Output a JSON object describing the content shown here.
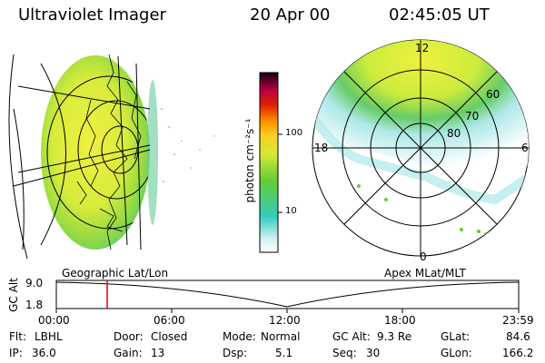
{
  "header": {
    "title": "Ultraviolet Imager",
    "date": "20 Apr 00",
    "time": "02:45:05 UT"
  },
  "colorbar": {
    "label": "photon cm⁻²s⁻¹",
    "ticks": [
      "100",
      "10"
    ]
  },
  "geo_panel": {
    "label": "Geographic Lat/Lon"
  },
  "polar_panel": {
    "label": "Apex MLat/MLT",
    "mlt_labels": {
      "top": "12",
      "left": "18",
      "right": "6",
      "bottom": "0"
    },
    "lat_labels": [
      "60",
      "70",
      "80"
    ]
  },
  "altitude_plot": {
    "ylabel": "GC Alt",
    "yticks": [
      "9.0",
      "1.8"
    ],
    "xticks": [
      "00:00",
      "06:00",
      "12:00",
      "18:00",
      "23:59"
    ],
    "marker_color": "#e00000",
    "marker_time": "02:45"
  },
  "footer": {
    "row1": [
      {
        "key": "Flt:",
        "value": "LBHL"
      },
      {
        "key": "Door:",
        "value": "Closed"
      },
      {
        "key": "Mode:",
        "value": "Normal"
      },
      {
        "key": "GC Alt:",
        "value": "9.3 Re"
      },
      {
        "key": "GLat:",
        "value": "84.6"
      }
    ],
    "row2": [
      {
        "key": "IP:",
        "value": "36.0"
      },
      {
        "key": "Gain:",
        "value": "13"
      },
      {
        "key": "Dsp:",
        "value": "5.1"
      },
      {
        "key": "Seq:",
        "value": "30"
      },
      {
        "key": "GLon:",
        "value": "166.2"
      }
    ]
  },
  "colors": {
    "low": "#e6f7f7",
    "cyan": "#33ccbb",
    "green": "#66cc33",
    "yellow": "#f0f040",
    "orange": "#ff9900",
    "red": "#cc0000",
    "dark": "#200020"
  }
}
